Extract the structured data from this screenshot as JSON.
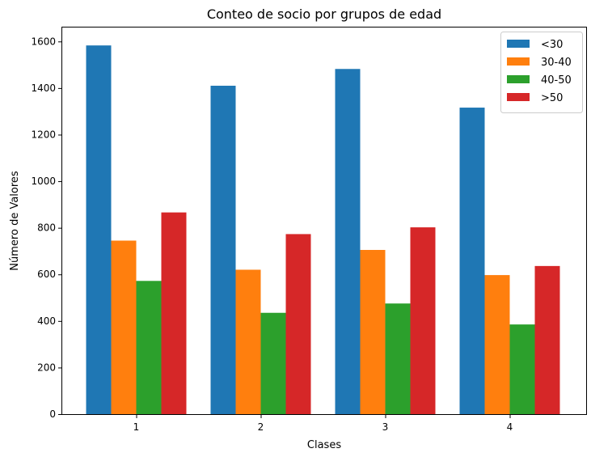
{
  "chart_data": {
    "type": "bar",
    "title": "Conteo de socio por grupos de edad",
    "xlabel": "Clases",
    "ylabel": "Número de Valores",
    "categories": [
      "1",
      "2",
      "3",
      "4"
    ],
    "ylim": [
      0,
      1660
    ],
    "yticks": [
      0,
      200,
      400,
      600,
      800,
      1000,
      1200,
      1400,
      1600
    ],
    "grid": false,
    "legend_position": "top-right",
    "series": [
      {
        "name": "<30",
        "color": "#1f77b4",
        "values": [
          1583,
          1410,
          1482,
          1316
        ]
      },
      {
        "name": "30-40",
        "color": "#ff7f0e",
        "values": [
          745,
          620,
          705,
          597
        ]
      },
      {
        "name": "40-50",
        "color": "#2ca02c",
        "values": [
          572,
          435,
          475,
          385
        ]
      },
      {
        "name": ">50",
        "color": "#d62728",
        "values": [
          866,
          773,
          802,
          636
        ]
      }
    ]
  }
}
